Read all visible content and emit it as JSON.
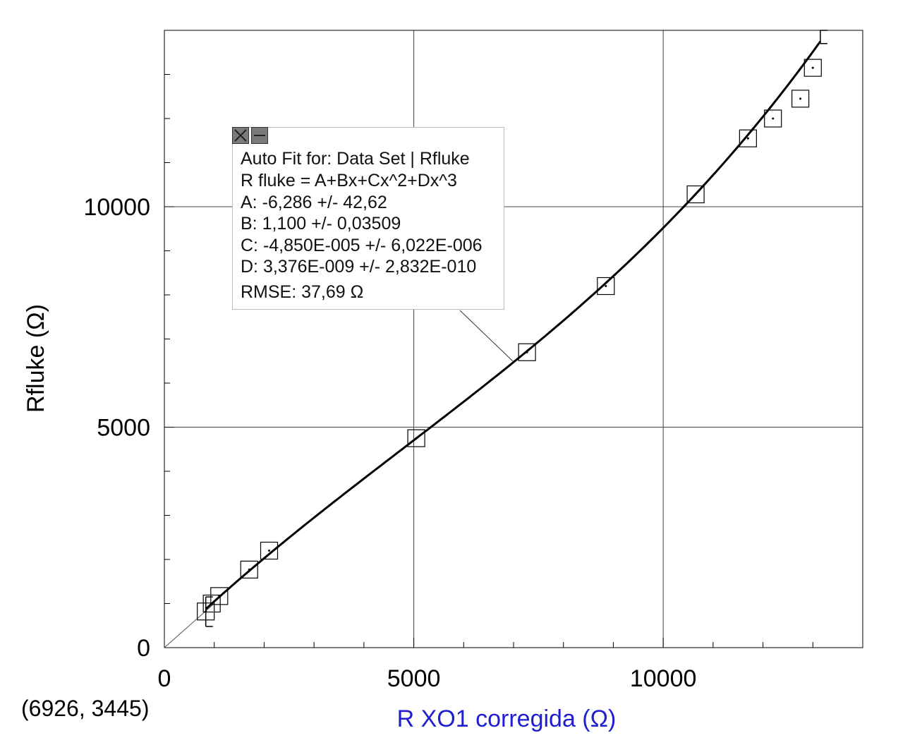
{
  "chart_data": {
    "type": "scatter",
    "xlabel": "R XO1 corregida (Ω)",
    "ylabel": "Rfluke (Ω)",
    "xlim": [
      0,
      14000
    ],
    "ylim": [
      0,
      14000
    ],
    "x_ticks": [
      0,
      5000,
      10000
    ],
    "y_ticks": [
      0,
      5000,
      10000
    ],
    "grid": true,
    "series": [
      {
        "x": [
          830,
          950,
          1100,
          1700,
          2100,
          5050,
          7270,
          8850,
          10650,
          11700,
          12200,
          12750,
          13000
        ],
        "y": [
          820,
          1000,
          1170,
          1770,
          2200,
          4750,
          6700,
          8200,
          10280,
          11550,
          12000,
          12450,
          13150
        ]
      }
    ],
    "fit": {
      "form": "cubic",
      "A": -6.286,
      "B": 1.1,
      "C": -4.85e-05,
      "D": 3.376e-09,
      "x_range": [
        830,
        13150
      ]
    },
    "error_bar_ends": [
      {
        "x": 830,
        "y_low": 480,
        "y_high": 1150
      },
      {
        "x": 13150,
        "y_low": 13700,
        "y_high": 14000
      }
    ]
  },
  "fit_box": {
    "title": "Auto Fit for: Data Set | Rfluke",
    "equation": "R fluke = A+Bx+Cx^2+Dx^3",
    "a": "A: -6,286 +/- 42,62",
    "b": "B: 1,100 +/- 0,03509",
    "c": "C: -4,850E-005 +/- 6,022E-006",
    "d": "D: 3,376E-009 +/- 2,832E-010",
    "rmse": "RMSE: 37,69 Ω",
    "close_icon": "close-icon",
    "minimize_icon": "minimize-icon"
  },
  "readout": "(6926, 3445)"
}
